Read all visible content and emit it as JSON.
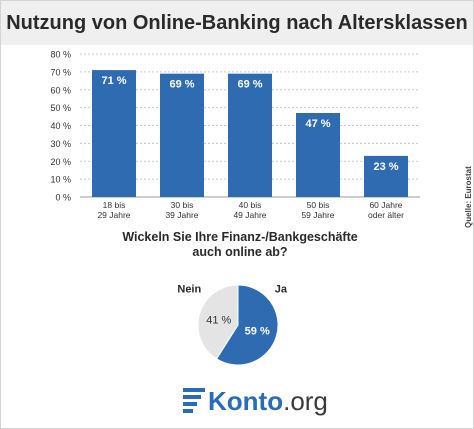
{
  "title": "Nutzung von Online-Banking nach Altersklassen",
  "source": "Quelle: Eurostat",
  "accent_color": "#2e6bb0",
  "chart_data": [
    {
      "type": "bar",
      "categories": [
        [
          "18 bis",
          "29 Jahre"
        ],
        [
          "30 bis",
          "39 Jahre"
        ],
        [
          "40 bis",
          "49 Jahre"
        ],
        [
          "50 bis",
          "59 Jahre"
        ],
        [
          "60 Jahre",
          "oder älter"
        ]
      ],
      "values": [
        71,
        69,
        69,
        47,
        23
      ],
      "data_labels": [
        "71 %",
        "69 %",
        "69 %",
        "47 %",
        "23 %"
      ],
      "yticks": [
        0,
        10,
        20,
        30,
        40,
        50,
        60,
        70,
        80
      ],
      "ytick_labels": [
        "0 %",
        "10 %",
        "20 %",
        "30 %",
        "40 %",
        "50 %",
        "60 %",
        "70 %",
        "80 %"
      ],
      "ylim": [
        0,
        80
      ],
      "grid": true,
      "color": "#2e6bb0"
    },
    {
      "type": "pie",
      "title": [
        "Wickeln Sie Ihre Finanz-/Bankgeschäfte",
        "auch online ab?"
      ],
      "slices": [
        {
          "label": "Ja",
          "value": 59,
          "value_label": "59 %",
          "color": "#2e6bb0"
        },
        {
          "label": "Nein",
          "value": 41,
          "value_label": "41 %",
          "color": "#e4e4e4"
        }
      ]
    }
  ],
  "logo": {
    "main": "Konto",
    "tld": ".org"
  }
}
